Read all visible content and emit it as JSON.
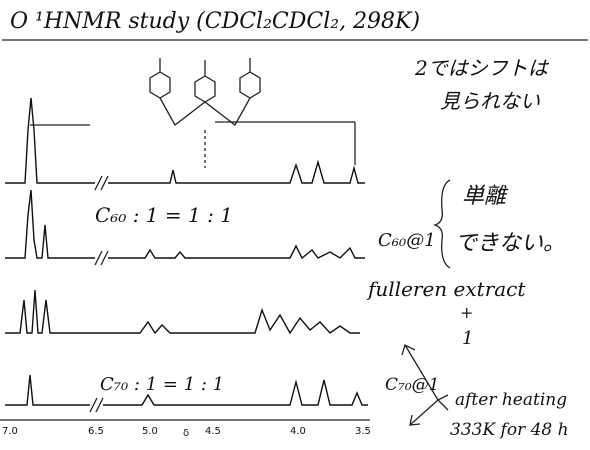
{
  "header": {
    "title": "O ¹HNMR study (CDCl₂CDCl₂, 298K)"
  },
  "notes": {
    "no_shift": [
      "2ではシフトは",
      "見られない"
    ],
    "c60_ratio": "C₆₀ : 1 = 1 : 1",
    "c60_complex": "C₆₀@1",
    "cannot_isolate": [
      "単離",
      "できない。"
    ],
    "extract": "fulleren extract",
    "plus": "+",
    "host": "1",
    "c70_ratio": "C₇₀ : 1 = 1 : 1",
    "c70_complex": "C₇₀@1",
    "heating": "after heating",
    "conditions": "333K for 48 h"
  },
  "axis": {
    "labels": [
      "7.0",
      "6.5",
      "5.0",
      "δ",
      "4.5",
      "4.0",
      "3.5"
    ]
  }
}
